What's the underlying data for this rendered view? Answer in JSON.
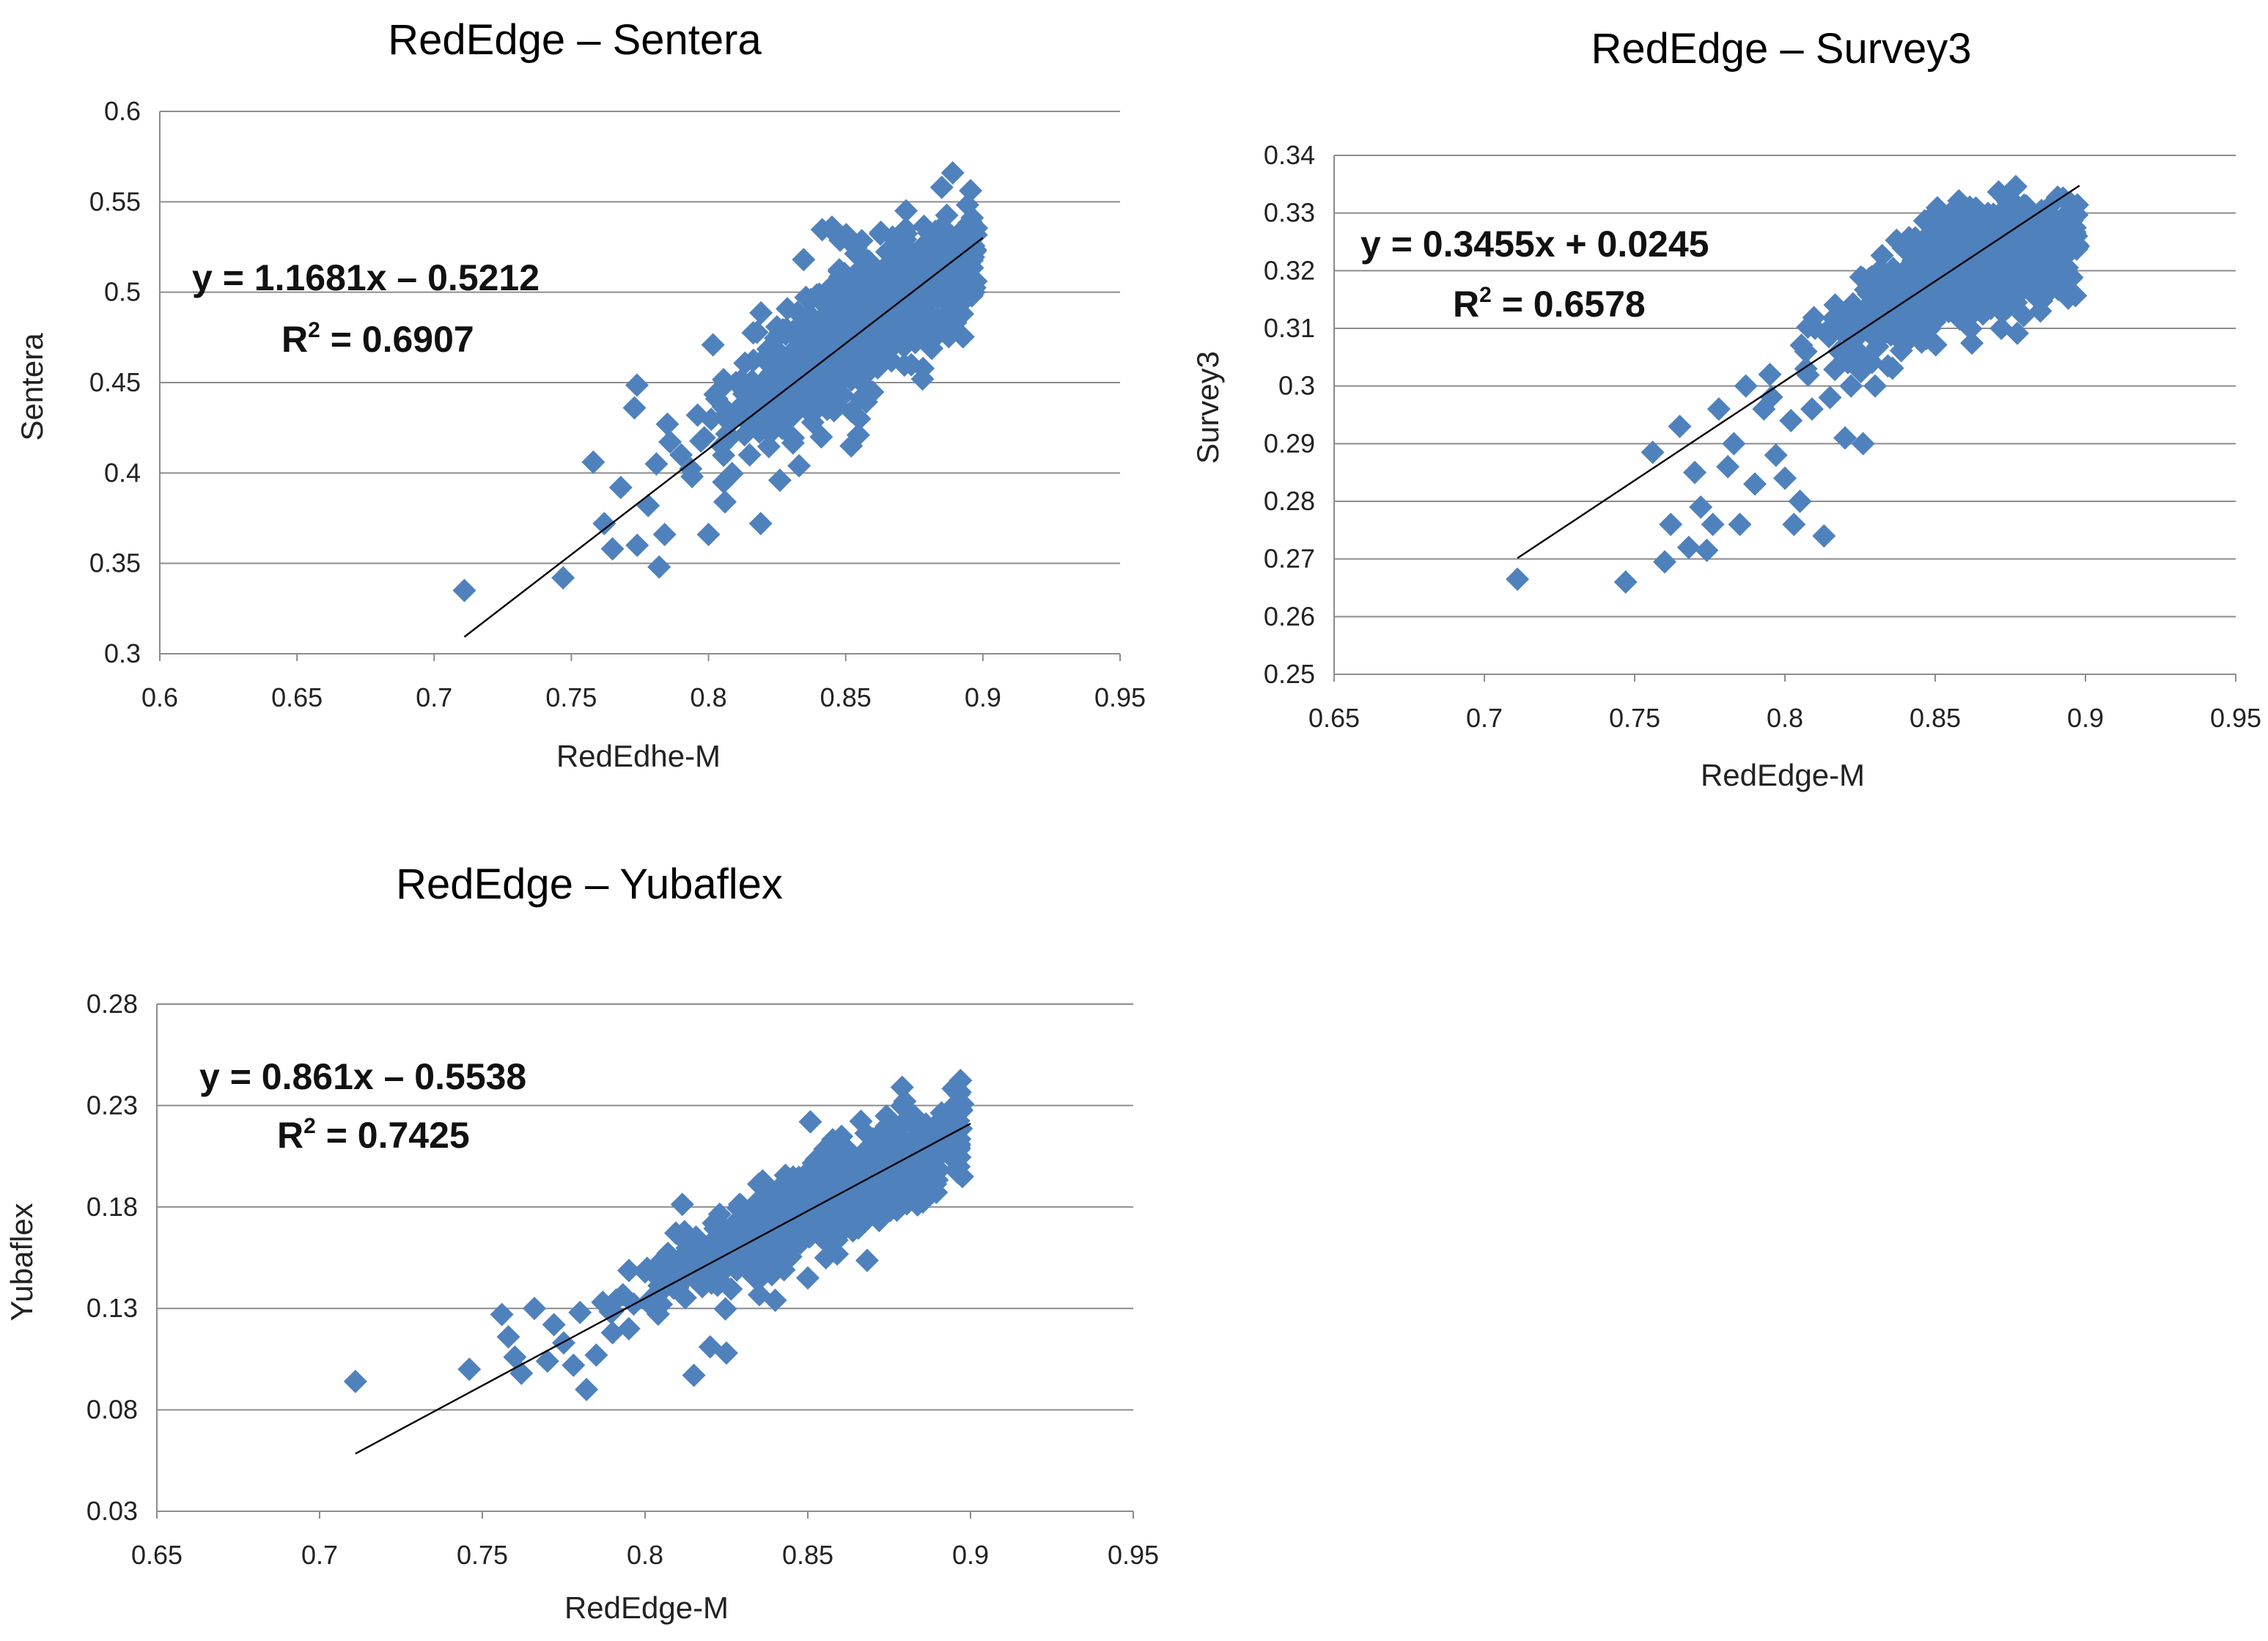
{
  "chart_data": [
    {
      "type": "scatter",
      "title": "RedEdge – Sentera",
      "xlabel": "RedEdhe-M",
      "ylabel": "Sentera",
      "xlim": [
        0.6,
        0.95
      ],
      "ylim": [
        0.3,
        0.6
      ],
      "xticks": [
        0.6,
        0.65,
        0.7,
        0.75,
        0.8,
        0.85,
        0.9,
        0.95
      ],
      "yticks": [
        0.3,
        0.35,
        0.4,
        0.45,
        0.5,
        0.55,
        0.6
      ],
      "xtick_labels": [
        "0.6",
        "0.65",
        "0.7",
        "0.75",
        "0.8",
        "0.85",
        "0.9",
        "0.95"
      ],
      "ytick_labels": [
        "0.3",
        "0.35",
        "0.4",
        "0.45",
        "0.5",
        "0.55",
        "0.6"
      ],
      "equation": "y = 1.1681x – 0.5212",
      "r2_label": "R",
      "r2_value": " = 0.6907",
      "fit": {
        "slope": 1.1681,
        "intercept": -0.5212,
        "x_from": 0.711,
        "x_to": 0.9
      },
      "series": [
        {
          "name": "Sentera",
          "points": [
            [
              0.711,
              0.335
            ],
            [
              0.747,
              0.342
            ],
            [
              0.758,
              0.406
            ],
            [
              0.762,
              0.372
            ],
            [
              0.765,
              0.358
            ],
            [
              0.768,
              0.392
            ],
            [
              0.773,
              0.436
            ],
            [
              0.774,
              0.36
            ],
            [
              0.778,
              0.382
            ],
            [
              0.781,
              0.405
            ],
            [
              0.782,
              0.348
            ],
            [
              0.784,
              0.366
            ],
            [
              0.785,
              0.427
            ],
            [
              0.79,
              0.41
            ],
            [
              0.794,
              0.398
            ],
            [
              0.796,
              0.432
            ],
            [
              0.8,
              0.366
            ],
            [
              0.803,
              0.441
            ],
            [
              0.806,
              0.384
            ],
            [
              0.81,
              0.45
            ],
            [
              0.815,
              0.41
            ],
            [
              0.819,
              0.372
            ],
            [
              0.822,
              0.448
            ],
            [
              0.826,
              0.396
            ],
            [
              0.833,
              0.404
            ],
            [
              0.838,
              0.428
            ],
            [
              0.842,
              0.454
            ],
            [
              0.845,
              0.536
            ],
            [
              0.848,
              0.46
            ],
            [
              0.852,
              0.415
            ],
            [
              0.855,
              0.43
            ],
            [
              0.86,
              0.503
            ],
            [
              0.866,
              0.478
            ],
            [
              0.872,
              0.545
            ],
            [
              0.878,
              0.452
            ],
            [
              0.885,
              0.558
            ],
            [
              0.889,
              0.566
            ],
            [
              0.893,
              0.51
            ],
            [
              0.896,
              0.498
            ]
          ]
        }
      ],
      "clusters": [
        {
          "x": 0.862,
          "y": 0.493,
          "sx": 0.021,
          "sy": 0.023,
          "rho": 0.7,
          "n": 650
        },
        {
          "x": 0.828,
          "y": 0.443,
          "sx": 0.014,
          "sy": 0.017,
          "rho": 0.6,
          "n": 160
        }
      ]
    },
    {
      "type": "scatter",
      "title": "RedEdge – Survey3",
      "xlabel": "RedEdge-M",
      "ylabel": "Survey3",
      "xlim": [
        0.65,
        0.95
      ],
      "ylim": [
        0.25,
        0.34
      ],
      "xticks": [
        0.65,
        0.7,
        0.75,
        0.8,
        0.85,
        0.9,
        0.95
      ],
      "yticks": [
        0.25,
        0.26,
        0.27,
        0.28,
        0.29,
        0.3,
        0.31,
        0.32,
        0.33,
        0.34
      ],
      "xtick_labels": [
        "0.65",
        "0.7",
        "0.75",
        "0.8",
        "0.85",
        "0.9",
        "0.95"
      ],
      "ytick_labels": [
        "0.25",
        "0.26",
        "0.27",
        "0.28",
        "0.29",
        "0.3",
        "0.31",
        "0.32",
        "0.33",
        "0.34"
      ],
      "equation": "y = 0.3455x + 0.0245",
      "r2_label": "R",
      "r2_value": " = 0.6578",
      "fit": {
        "slope": 0.3455,
        "intercept": 0.0245,
        "x_from": 0.711,
        "x_to": 0.898
      },
      "series": [
        {
          "name": "Survey3",
          "points": [
            [
              0.711,
              0.2665
            ],
            [
              0.747,
              0.266
            ],
            [
              0.756,
              0.2885
            ],
            [
              0.76,
              0.2695
            ],
            [
              0.762,
              0.276
            ],
            [
              0.765,
              0.293
            ],
            [
              0.768,
              0.272
            ],
            [
              0.77,
              0.285
            ],
            [
              0.772,
              0.279
            ],
            [
              0.774,
              0.2715
            ],
            [
              0.776,
              0.276
            ],
            [
              0.778,
              0.296
            ],
            [
              0.781,
              0.286
            ],
            [
              0.783,
              0.29
            ],
            [
              0.785,
              0.276
            ],
            [
              0.787,
              0.3
            ],
            [
              0.79,
              0.283
            ],
            [
              0.793,
              0.296
            ],
            [
              0.795,
              0.302
            ],
            [
              0.797,
              0.288
            ],
            [
              0.8,
              0.284
            ],
            [
              0.802,
              0.294
            ],
            [
              0.803,
              0.276
            ],
            [
              0.805,
              0.28
            ],
            [
              0.807,
              0.303
            ],
            [
              0.809,
              0.296
            ],
            [
              0.81,
              0.31
            ],
            [
              0.813,
              0.274
            ],
            [
              0.815,
              0.298
            ],
            [
              0.818,
              0.306
            ],
            [
              0.82,
              0.291
            ],
            [
              0.822,
              0.3
            ],
            [
              0.826,
              0.29
            ],
            [
              0.83,
              0.3
            ],
            [
              0.835,
              0.312
            ],
            [
              0.845,
              0.322
            ],
            [
              0.86,
              0.316
            ],
            [
              0.872,
              0.31
            ],
            [
              0.885,
              0.313
            ],
            [
              0.897,
              0.326
            ]
          ]
        }
      ],
      "clusters": [
        {
          "x": 0.868,
          "y": 0.3225,
          "sx": 0.016,
          "sy": 0.0045,
          "rho": 0.25,
          "n": 650
        },
        {
          "x": 0.835,
          "y": 0.312,
          "sx": 0.013,
          "sy": 0.0045,
          "rho": 0.5,
          "n": 150
        }
      ]
    },
    {
      "type": "scatter",
      "title": "RedEdge – Yubaflex",
      "xlabel": "RedEdge-M",
      "ylabel": "Yubaflex",
      "xlim": [
        0.65,
        0.95
      ],
      "ylim": [
        0.03,
        0.28
      ],
      "xticks": [
        0.65,
        0.7,
        0.75,
        0.8,
        0.85,
        0.9,
        0.95
      ],
      "yticks": [
        0.03,
        0.08,
        0.13,
        0.18,
        0.23,
        0.28
      ],
      "xtick_labels": [
        "0.65",
        "0.7",
        "0.75",
        "0.8",
        "0.85",
        "0.9",
        "0.95"
      ],
      "ytick_labels": [
        "0.03",
        "0.08",
        "0.13",
        "0.18",
        "0.23",
        "0.28"
      ],
      "equation": "y = 0.861x – 0.5538",
      "r2_label": "R",
      "r2_value": " = 0.7425",
      "fit": {
        "slope": 0.861,
        "intercept": -0.5538,
        "x_from": 0.711,
        "x_to": 0.9
      },
      "series": [
        {
          "name": "Yubaflex",
          "points": [
            [
              0.711,
              0.094
            ],
            [
              0.746,
              0.1
            ],
            [
              0.756,
              0.127
            ],
            [
              0.758,
              0.116
            ],
            [
              0.76,
              0.106
            ],
            [
              0.762,
              0.098
            ],
            [
              0.766,
              0.13
            ],
            [
              0.77,
              0.104
            ],
            [
              0.772,
              0.122
            ],
            [
              0.775,
              0.113
            ],
            [
              0.778,
              0.102
            ],
            [
              0.78,
              0.128
            ],
            [
              0.782,
              0.09
            ],
            [
              0.785,
              0.107
            ],
            [
              0.787,
              0.133
            ],
            [
              0.79,
              0.118
            ],
            [
              0.795,
              0.12
            ],
            [
              0.8,
              0.148
            ],
            [
              0.805,
              0.132
            ],
            [
              0.81,
              0.14
            ],
            [
              0.815,
              0.097
            ],
            [
              0.82,
              0.111
            ],
            [
              0.825,
              0.108
            ],
            [
              0.84,
              0.134
            ],
            [
              0.85,
              0.145
            ],
            [
              0.86,
              0.167
            ],
            [
              0.87,
              0.178
            ],
            [
              0.879,
              0.239
            ],
            [
              0.886,
              0.201
            ],
            [
              0.893,
              0.214
            ]
          ]
        }
      ],
      "clusters": [
        {
          "x": 0.866,
          "y": 0.193,
          "sx": 0.017,
          "sy": 0.016,
          "rho": 0.75,
          "n": 650
        },
        {
          "x": 0.83,
          "y": 0.16,
          "sx": 0.016,
          "sy": 0.012,
          "rho": 0.7,
          "n": 250
        }
      ]
    }
  ]
}
